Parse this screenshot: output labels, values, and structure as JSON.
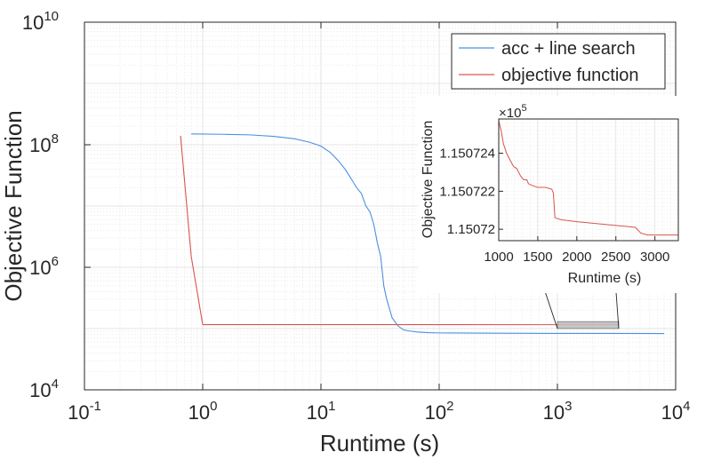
{
  "chart_data": [
    {
      "id": "main",
      "type": "line",
      "xscale": "log",
      "yscale": "log",
      "xlabel": "Runtime (s)",
      "ylabel": "Objective Function",
      "xlim": [
        0.1,
        10000
      ],
      "ylim": [
        10000,
        10000000000
      ],
      "x_ticks": [
        {
          "value": 0.1,
          "base": "10",
          "exp": "-1"
        },
        {
          "value": 1,
          "base": "10",
          "exp": "0"
        },
        {
          "value": 10,
          "base": "10",
          "exp": "1"
        },
        {
          "value": 100,
          "base": "10",
          "exp": "2"
        },
        {
          "value": 1000,
          "base": "10",
          "exp": "3"
        },
        {
          "value": 10000,
          "base": "10",
          "exp": "4"
        }
      ],
      "y_ticks": [
        {
          "value": 10000,
          "base": "10",
          "exp": "4"
        },
        {
          "value": 1000000,
          "base": "10",
          "exp": "6"
        },
        {
          "value": 100000000,
          "base": "10",
          "exp": "8"
        },
        {
          "value": 10000000000,
          "base": "10",
          "exp": "10"
        }
      ],
      "grid": true,
      "legend_position": "top-right",
      "series": [
        {
          "name": "acc + line search",
          "color": "#4a90e2",
          "points": [
            [
              0.8,
              150000000
            ],
            [
              1.5,
              148000000
            ],
            [
              2.5,
              145000000
            ],
            [
              4,
              137000000
            ],
            [
              6,
              125000000
            ],
            [
              8,
              110000000
            ],
            [
              10,
              95000000
            ],
            [
              12,
              75000000
            ],
            [
              14,
              55000000
            ],
            [
              16,
              40000000
            ],
            [
              18,
              28000000
            ],
            [
              20,
              20000000
            ],
            [
              22,
              16000000
            ],
            [
              24,
              10000000
            ],
            [
              26,
              8000000
            ],
            [
              28,
              5000000
            ],
            [
              30,
              2500000
            ],
            [
              32,
              1500000
            ],
            [
              34,
              500000
            ],
            [
              36,
              300000
            ],
            [
              40,
              150000
            ],
            [
              45,
              110000
            ],
            [
              50,
              95000
            ],
            [
              55,
              92000
            ],
            [
              65,
              88000
            ],
            [
              80,
              86000
            ],
            [
              100,
              85000
            ],
            [
              300,
              84000
            ],
            [
              1000,
              83500
            ],
            [
              3000,
              83300
            ],
            [
              8000,
              83000
            ]
          ]
        },
        {
          "name": "objective function",
          "color": "#d9534f",
          "points": [
            [
              0.65,
              140000000
            ],
            [
              0.8,
              1500000
            ],
            [
              1.0,
              116000
            ],
            [
              10,
              116000
            ],
            [
              100,
              115800
            ],
            [
              1000,
              115750
            ],
            [
              3300,
              115700
            ]
          ]
        }
      ],
      "zoom_region": {
        "x": [
          1000,
          3300
        ],
        "y": [
          100000,
          130000
        ]
      }
    },
    {
      "id": "inset",
      "type": "line",
      "xlabel": "Runtime (s)",
      "ylabel": "Objective Function",
      "multiplier_base": "×10",
      "multiplier_exp": "5",
      "xlim": [
        1000,
        3300
      ],
      "ylim": [
        1.1507194,
        1.1507258
      ],
      "x_ticks": [
        {
          "value": 1000,
          "label": "1000"
        },
        {
          "value": 1500,
          "label": "1500"
        },
        {
          "value": 2000,
          "label": "2000"
        },
        {
          "value": 2500,
          "label": "2500"
        },
        {
          "value": 3000,
          "label": "3000"
        }
      ],
      "y_ticks": [
        {
          "value": 1.15072,
          "label": "1.15072"
        },
        {
          "value": 1.150722,
          "label": "1.150722"
        },
        {
          "value": 1.150724,
          "label": "1.150724"
        }
      ],
      "grid": true,
      "series": [
        {
          "name": "objective function",
          "color": "#d9534f",
          "points": [
            [
              1000,
              1.1507257
            ],
            [
              1030,
              1.1507252
            ],
            [
              1060,
              1.1507245
            ],
            [
              1100,
              1.150724
            ],
            [
              1150,
              1.1507236
            ],
            [
              1190,
              1.1507233
            ],
            [
              1230,
              1.1507232
            ],
            [
              1280,
              1.1507228
            ],
            [
              1320,
              1.1507226
            ],
            [
              1360,
              1.1507226
            ],
            [
              1380,
              1.1507224
            ],
            [
              1430,
              1.1507223
            ],
            [
              1500,
              1.1507222
            ],
            [
              1600,
              1.1507222
            ],
            [
              1680,
              1.1507221
            ],
            [
              1700,
              1.1507219
            ],
            [
              1720,
              1.1507206
            ],
            [
              1800,
              1.1507205
            ],
            [
              2000,
              1.1507204
            ],
            [
              2250,
              1.1507203
            ],
            [
              2500,
              1.1507202
            ],
            [
              2750,
              1.1507201
            ],
            [
              2820,
              1.1507198
            ],
            [
              2900,
              1.1507197
            ],
            [
              3300,
              1.1507197
            ]
          ]
        }
      ]
    }
  ]
}
